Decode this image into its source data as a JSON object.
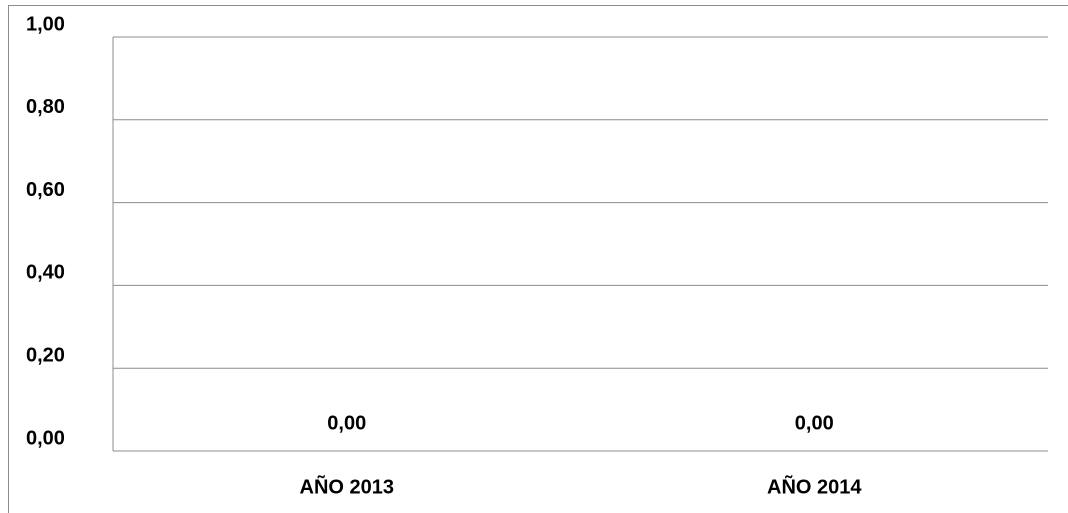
{
  "chart_data": {
    "type": "bar",
    "categories": [
      "AÑO 2013",
      "AÑO 2014"
    ],
    "values": [
      0,
      0
    ],
    "value_labels": [
      "0,00",
      "0,00"
    ],
    "color": "#4472c4",
    "ylim": [
      0,
      1
    ],
    "yticks": [
      {
        "value": 0,
        "label": "0,00"
      },
      {
        "value": 0.2,
        "label": "0,20"
      },
      {
        "value": 0.4,
        "label": "0,40"
      },
      {
        "value": 0.6,
        "label": "0,60"
      },
      {
        "value": 0.8,
        "label": "0,80"
      },
      {
        "value": 1,
        "label": "1,00"
      }
    ],
    "grid": true
  }
}
